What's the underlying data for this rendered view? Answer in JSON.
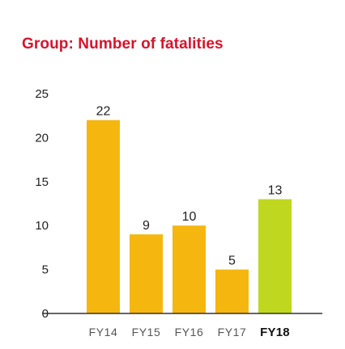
{
  "chart_data": {
    "type": "bar",
    "title": "Group: Number of fatalities",
    "categories": [
      "FY14",
      "FY15",
      "FY16",
      "FY17",
      "FY18"
    ],
    "values": [
      22,
      9,
      10,
      5,
      13
    ],
    "data_labels": [
      "22",
      "9",
      "10",
      "5",
      "13"
    ],
    "highlight_index": 4,
    "ylim": [
      0,
      25
    ],
    "yticks": [
      0,
      5,
      10,
      15,
      20,
      25
    ],
    "grid": false,
    "legend": "none",
    "colors": {
      "bar": "#f5b70f",
      "highlight_bar": "#bfd71e",
      "axis": "#333333",
      "title": "#d7142b"
    }
  }
}
